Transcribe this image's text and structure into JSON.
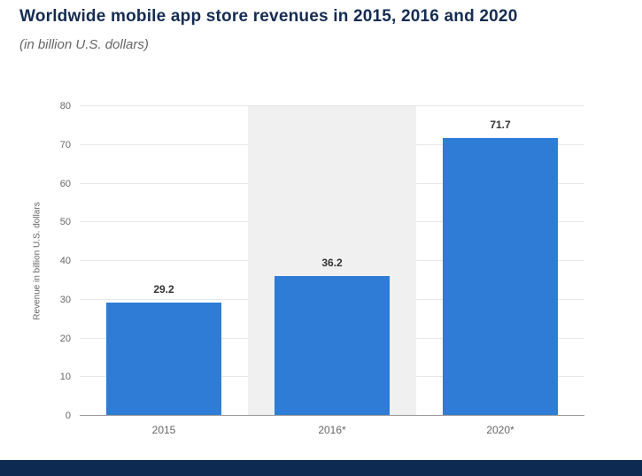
{
  "header": {
    "title": "Worldwide mobile app store revenues in 2015, 2016 and 2020",
    "subtitle": "(in billion U.S. dollars)"
  },
  "chart_data": {
    "type": "bar",
    "title": "Worldwide mobile app store revenues in 2015, 2016 and 2020",
    "subtitle": "(in billion U.S. dollars)",
    "categories": [
      "2015",
      "2016*",
      "2020*"
    ],
    "values": [
      29.2,
      36.2,
      71.7
    ],
    "data_labels": [
      "29.2",
      "36.2",
      "71.7"
    ],
    "xlabel": "",
    "ylabel": "Revenue in billion U.S. dollars",
    "ylim": [
      0,
      80
    ],
    "yticks": [
      0,
      10,
      20,
      30,
      40,
      50,
      60,
      70,
      80
    ],
    "grid": "horizontal",
    "legend": "none",
    "bar_color": "#2e7cd6",
    "highlighted_category": "2016*",
    "highlight_color": "#f0f0f0"
  },
  "colors": {
    "title": "#152c52",
    "subtitle": "#666666",
    "footer_bar": "#0d2a52",
    "gridline": "#e8e8e8",
    "axis_line": "#999999",
    "tick_label": "#666666",
    "data_label": "#333333"
  }
}
